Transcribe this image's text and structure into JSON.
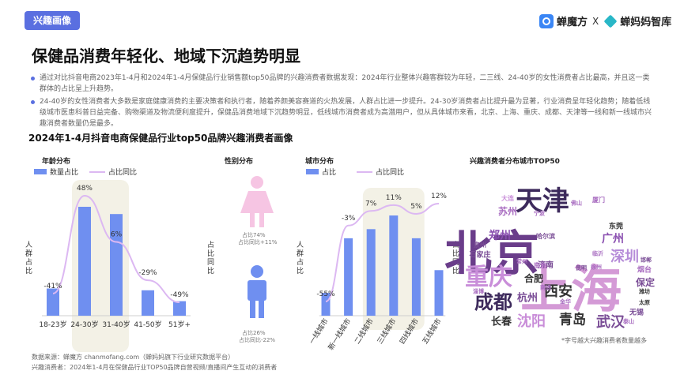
{
  "header": {
    "tag": "兴趣画像",
    "brand1": "蝉魔方",
    "separator": "X",
    "brand2": "蝉妈妈智库"
  },
  "title": "保健品消费年轻化、地域下沉趋势明显",
  "paragraphs": [
    "通过对比抖音电商2023年1-4月和2024年1-4月保健品行业销售额top50品牌的兴趣消费者数据发现：2024年行业整体兴趣客群较为年轻，二三线、24-40岁的女性消费者占比最高，并且这一类群体的占比呈上升趋势。",
    "24-40岁的女性消费者大多数是家庭健康消费的主要决策者和执行者，随着养颜美容赛道的火热发展，人群占比进一步提升。24-30岁消费者占比提升最为显著，行业消费呈年轻化趋势；随着低线级城市医患科普日益完备、购物渠道及物流便利度提升，保健品消费地域下沉趋势明显，低线城市消费者成为高潜用户，但从具体城市来看，北京、上海、重庆、成都、天津等一线和新一线城市兴趣消费者数量仍是最多。"
  ],
  "section_title": "2024年1-4月抖音电商保健品行业top50品牌兴趣消费者画像",
  "age_panel": {
    "title": "年龄分布",
    "legend_bar": "数量占比",
    "legend_line": "占比同比",
    "y_left": "人群占比",
    "y_right": "占比同比"
  },
  "gender_panel": {
    "title": "性别分布",
    "female_label1": "占比74%",
    "female_label2": "占比同比+11%",
    "male_label1": "占比26%",
    "male_label2": "占比同比-22%"
  },
  "city_panel": {
    "title": "城市分布",
    "legend_bar": "占比",
    "legend_line": "占比同比",
    "y_left": "人群占比",
    "y_right": "占比同比"
  },
  "cloud_panel": {
    "title": "兴趣消费者分布城市TOP50",
    "note": "*字号越大兴趣消费者数量越多"
  },
  "footer": {
    "line1": "数据来源：蝉魔方 chanmofang.com（蝉妈妈旗下行业研究数据平台）",
    "line2": "兴趣消费者：2024年1-4月在保健品行业TOP50品牌自营视频/直播间产生互动的消费者"
  },
  "colors": {
    "bar": "#6f8ff0",
    "line": "#dcb8f2",
    "highlight": "#f3f1e6",
    "accent": "#5a6fe0"
  },
  "chart_data": [
    {
      "type": "bar",
      "title": "年龄分布",
      "categories": [
        "18-23岁",
        "24-30岁",
        "31-40岁",
        "41-50岁",
        "51岁+"
      ],
      "series": [
        {
          "name": "数量占比",
          "type": "bar",
          "values": [
            15,
            60,
            56,
            14,
            8
          ]
        },
        {
          "name": "占比同比",
          "type": "line",
          "values": [
            -41,
            48,
            6,
            -29,
            -49
          ],
          "labels": [
            "-41%",
            "48%",
            "6%",
            "-29%",
            "-49%"
          ]
        }
      ],
      "ylabel": "人群占比",
      "y2label": "占比同比",
      "highlight": [
        "24-30岁",
        "31-40岁"
      ]
    },
    {
      "type": "bar",
      "title": "城市分布",
      "categories": [
        "一线城市",
        "新一线城市",
        "二线城市",
        "三线城市",
        "四线城市",
        "五线城市"
      ],
      "series": [
        {
          "name": "占比",
          "type": "bar",
          "values": [
            5,
            17,
            19,
            22,
            17,
            10
          ]
        },
        {
          "name": "占比同比",
          "type": "line",
          "values": [
            -55,
            -3,
            7,
            11,
            5,
            12
          ],
          "labels": [
            "-55%",
            "-3%",
            "7%",
            "11%",
            "5%",
            "12%"
          ]
        }
      ],
      "ylabel": "人群占比",
      "y2label": "占比同比",
      "highlight": [
        "二线城市",
        "三线城市",
        "四线城市"
      ]
    }
  ],
  "word_cloud": [
    {
      "text": "北京",
      "color": "#6a3d8a"
    },
    {
      "text": "上海",
      "color": "#d49ad6"
    },
    {
      "text": "天津",
      "color": "#3d2a5c"
    },
    {
      "text": "重庆",
      "color": "#c98ed9"
    },
    {
      "text": "成都",
      "color": "#3d2a5c"
    },
    {
      "text": "深圳",
      "color": "#b58bd8"
    },
    {
      "text": "西安",
      "color": "#333333"
    },
    {
      "text": "武汉",
      "color": "#7a4d96"
    },
    {
      "text": "沈阳",
      "color": "#c98ed9"
    },
    {
      "text": "青岛",
      "color": "#333333"
    },
    {
      "text": "广州",
      "color": "#8a4fb0"
    },
    {
      "text": "郑州",
      "color": "#8a4fb0"
    },
    {
      "text": "杭州",
      "color": "#7a4d96"
    },
    {
      "text": "长春",
      "color": "#333333"
    },
    {
      "text": "苏州",
      "color": "#a86cc0"
    },
    {
      "text": "合肥",
      "color": "#333333"
    },
    {
      "text": "济南",
      "color": "#7a4d96"
    },
    {
      "text": "保定",
      "color": "#7a4d96"
    },
    {
      "text": "东莞",
      "color": "#333333"
    },
    {
      "text": "烟台",
      "color": "#a86cc0"
    },
    {
      "text": "石家庄",
      "color": "#7a4d96"
    },
    {
      "text": "大连",
      "color": "#c98ed9"
    },
    {
      "text": "哈尔滨",
      "color": "#7a4d96"
    },
    {
      "text": "南京",
      "color": "#a86cc0"
    },
    {
      "text": "泉州",
      "color": "#7a4d96"
    },
    {
      "text": "无锡",
      "color": "#7a4d96"
    },
    {
      "text": "潍坊",
      "color": "#333333"
    },
    {
      "text": "太原",
      "color": "#333333"
    },
    {
      "text": "昆明",
      "color": "#7a4d96"
    },
    {
      "text": "邯郸",
      "color": "#7a4d96"
    },
    {
      "text": "临沂",
      "color": "#a86cc0"
    },
    {
      "text": "佛山",
      "color": "#a86cc0"
    },
    {
      "text": "淄博",
      "color": "#a86cc0"
    },
    {
      "text": "金华",
      "color": "#a86cc0"
    },
    {
      "text": "南通",
      "color": "#a86cc0"
    },
    {
      "text": "宁波",
      "color": "#a86cc0"
    },
    {
      "text": "厦门",
      "color": "#a86cc0"
    },
    {
      "text": "徐州",
      "color": "#a86cc0"
    },
    {
      "text": "常州",
      "color": "#a86cc0"
    },
    {
      "text": "泰山",
      "color": "#a86cc0"
    }
  ]
}
